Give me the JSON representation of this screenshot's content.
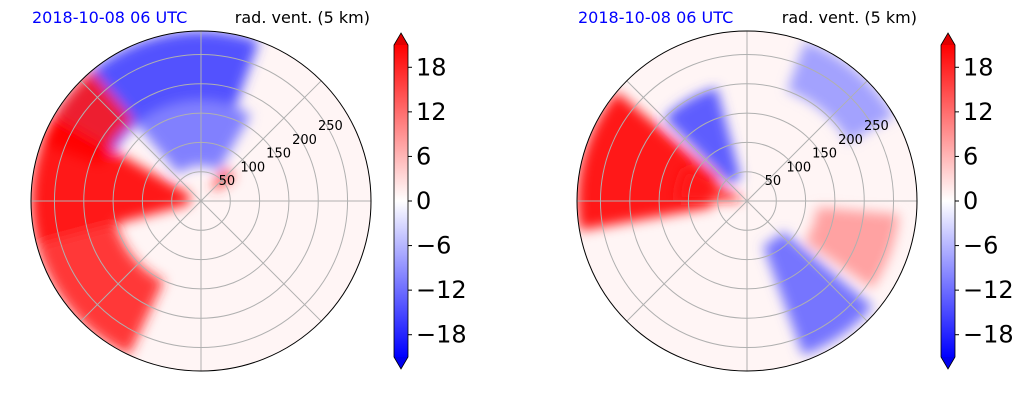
{
  "colors": {
    "positive": "#ff0000",
    "negative": "#0000ff",
    "neutral": "#ffffff",
    "grid": "#b0b0b0",
    "date_text": "#0000ff"
  },
  "chart_data": [
    {
      "type": "heatmap",
      "projection": "polar",
      "left_title": "2018-10-08 06 UTC",
      "right_title": "rad. vent. (5 km)",
      "r_ticks": [
        "50",
        "100",
        "150",
        "200",
        "250"
      ],
      "r_tick_values": [
        50,
        100,
        150,
        200,
        250
      ],
      "r_max": 290,
      "grid": true,
      "colorbar": {
        "ticks": [
          "18",
          "12",
          "6",
          "0",
          "−6",
          "−12",
          "−18"
        ],
        "tick_values": [
          18,
          12,
          6,
          0,
          -6,
          -12,
          -18
        ],
        "range": [
          -21,
          21
        ],
        "extend": "both",
        "cmap": "bwr"
      },
      "regions": [
        {
          "sign": "negative",
          "strength": 0.75,
          "azimuth_deg": [
            300,
            20
          ],
          "range_km": [
            170,
            290
          ]
        },
        {
          "sign": "negative",
          "strength": 0.55,
          "azimuth_deg": [
            320,
            30
          ],
          "range_km": [
            60,
            170
          ]
        },
        {
          "sign": "positive",
          "strength": 0.9,
          "azimuth_deg": [
            290,
            320
          ],
          "range_km": [
            180,
            290
          ]
        },
        {
          "sign": "positive",
          "strength": 1.0,
          "azimuth_deg": [
            255,
            300
          ],
          "range_km": [
            20,
            290
          ]
        },
        {
          "sign": "positive",
          "strength": 0.85,
          "azimuth_deg": [
            205,
            255
          ],
          "range_km": [
            150,
            290
          ]
        },
        {
          "sign": "positive",
          "strength": 0.8,
          "azimuth_deg": [
            35,
            55
          ],
          "range_km": [
            30,
            70
          ]
        }
      ]
    },
    {
      "type": "heatmap",
      "projection": "polar",
      "left_title": "2018-10-08 06 UTC",
      "right_title": "rad. vent. (5 km)",
      "r_ticks": [
        "50",
        "100",
        "150",
        "200",
        "250"
      ],
      "r_tick_values": [
        50,
        100,
        150,
        200,
        250
      ],
      "r_max": 290,
      "grid": true,
      "colorbar": {
        "ticks": [
          "18",
          "12",
          "6",
          "0",
          "−6",
          "−12",
          "−18"
        ],
        "tick_values": [
          18,
          12,
          6,
          0,
          -6,
          -12,
          -18
        ],
        "range": [
          -21,
          21
        ],
        "extend": "both",
        "cmap": "bwr"
      },
      "regions": [
        {
          "sign": "positive",
          "strength": 1.0,
          "azimuth_deg": [
            260,
            310
          ],
          "range_km": [
            60,
            290
          ]
        },
        {
          "sign": "positive",
          "strength": 0.9,
          "azimuth_deg": [
            270,
            300
          ],
          "range_km": [
            10,
            120
          ]
        },
        {
          "sign": "negative",
          "strength": 0.7,
          "azimuth_deg": [
            315,
            345
          ],
          "range_km": [
            40,
            200
          ]
        },
        {
          "sign": "negative",
          "strength": 0.6,
          "azimuth_deg": [
            130,
            160
          ],
          "range_km": [
            80,
            280
          ]
        },
        {
          "sign": "positive",
          "strength": 0.4,
          "azimuth_deg": [
            95,
            125
          ],
          "range_km": [
            120,
            260
          ]
        },
        {
          "sign": "negative",
          "strength": 0.4,
          "azimuth_deg": [
            20,
            60
          ],
          "range_km": [
            200,
            290
          ]
        }
      ]
    }
  ]
}
